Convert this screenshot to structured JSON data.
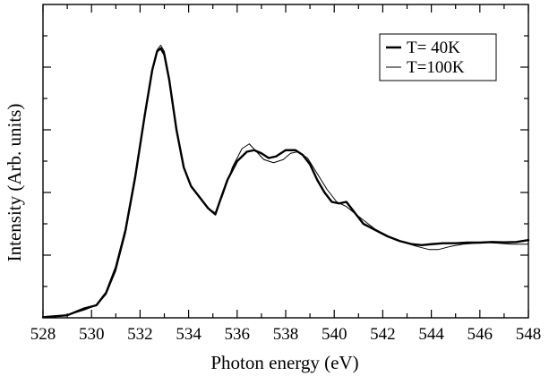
{
  "chart_data": {
    "type": "line",
    "xlabel": "Photon energy (eV)",
    "ylabel": "Intensity (Arb. units)",
    "xlim": [
      528,
      548
    ],
    "ylim": [
      0,
      1.0
    ],
    "x_ticks": [
      528,
      530,
      532,
      534,
      536,
      538,
      540,
      542,
      544,
      546,
      548
    ],
    "x_tick_labels": [
      "528",
      "530",
      "532",
      "534",
      "536",
      "538",
      "540",
      "542",
      "544",
      "546",
      "548"
    ],
    "y_ticks": [
      0.2,
      0.4,
      0.6,
      0.8
    ],
    "grid": false,
    "legend": "top-right",
    "series": [
      {
        "name": "T= 40K",
        "color": "#000000",
        "weight": "thick",
        "x": [
          528,
          529,
          529.7,
          530.2,
          530.6,
          531.0,
          531.4,
          531.8,
          532.2,
          532.5,
          532.7,
          532.85,
          533.0,
          533.2,
          533.5,
          533.8,
          534.1,
          534.4,
          534.8,
          535.1,
          535.3,
          535.6,
          536.0,
          536.4,
          536.7,
          537.0,
          537.3,
          537.6,
          538.0,
          538.4,
          538.7,
          539.0,
          539.3,
          539.6,
          539.9,
          540.2,
          540.5,
          540.8,
          541.2,
          541.7,
          542.2,
          542.7,
          543.2,
          543.6,
          544.0,
          544.5,
          545.0,
          545.5,
          546.0,
          546.5,
          547.0,
          547.5,
          548.0
        ],
        "y": [
          0.002,
          0.008,
          0.03,
          0.04,
          0.08,
          0.16,
          0.28,
          0.45,
          0.65,
          0.79,
          0.85,
          0.86,
          0.84,
          0.76,
          0.6,
          0.48,
          0.42,
          0.39,
          0.35,
          0.33,
          0.375,
          0.44,
          0.5,
          0.53,
          0.535,
          0.525,
          0.51,
          0.515,
          0.535,
          0.535,
          0.52,
          0.49,
          0.44,
          0.4,
          0.37,
          0.365,
          0.37,
          0.34,
          0.3,
          0.28,
          0.26,
          0.245,
          0.235,
          0.232,
          0.235,
          0.238,
          0.238,
          0.24,
          0.24,
          0.242,
          0.241,
          0.242,
          0.248
        ]
      },
      {
        "name": "T=100K",
        "color": "#000000",
        "weight": "thin",
        "x": [
          528,
          529,
          529.7,
          530.2,
          530.6,
          531.0,
          531.4,
          531.8,
          532.2,
          532.5,
          532.7,
          532.85,
          533.0,
          533.2,
          533.5,
          533.8,
          534.1,
          534.4,
          534.8,
          535.1,
          535.4,
          535.8,
          536.2,
          536.5,
          536.8,
          537.1,
          537.5,
          537.9,
          538.2,
          538.5,
          538.9,
          539.3,
          539.7,
          540.1,
          540.5,
          540.9,
          541.4,
          541.9,
          542.4,
          542.9,
          543.4,
          543.9,
          544.3,
          544.8,
          545.3,
          545.8,
          546.3,
          546.8,
          547.3,
          548.0
        ],
        "y": [
          0.002,
          0.008,
          0.025,
          0.04,
          0.075,
          0.15,
          0.27,
          0.44,
          0.65,
          0.79,
          0.855,
          0.87,
          0.85,
          0.76,
          0.6,
          0.48,
          0.42,
          0.39,
          0.35,
          0.335,
          0.39,
          0.48,
          0.54,
          0.555,
          0.53,
          0.505,
          0.495,
          0.505,
          0.525,
          0.53,
          0.51,
          0.46,
          0.41,
          0.37,
          0.355,
          0.33,
          0.3,
          0.27,
          0.255,
          0.24,
          0.228,
          0.218,
          0.218,
          0.228,
          0.235,
          0.238,
          0.24,
          0.238,
          0.235,
          0.235
        ]
      }
    ]
  }
}
